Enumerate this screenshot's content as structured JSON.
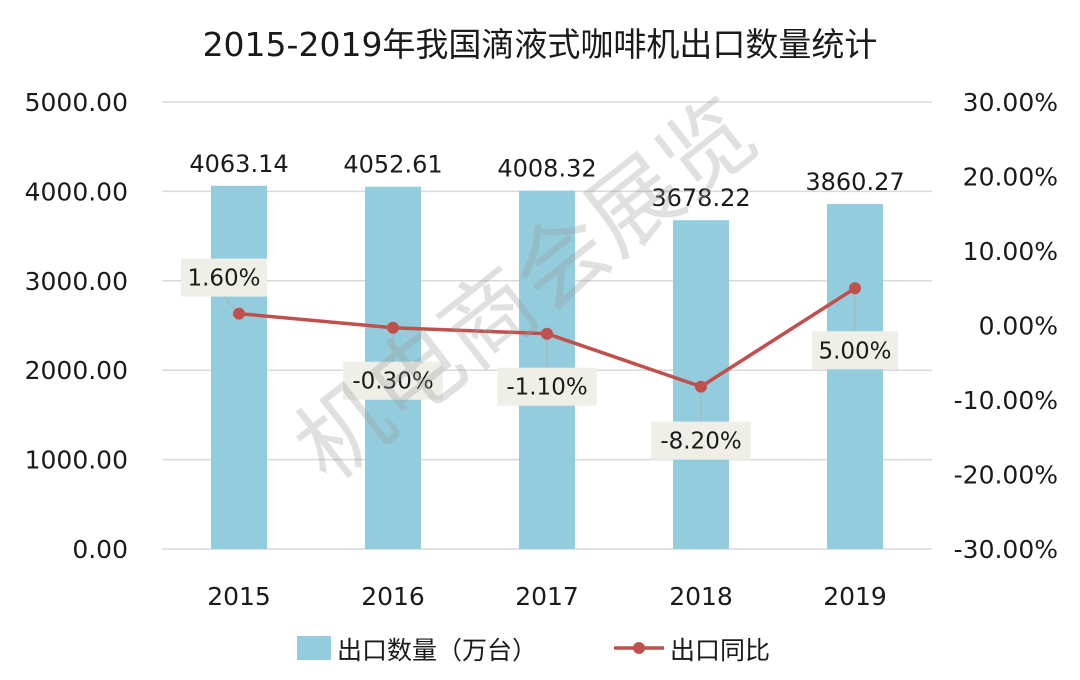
{
  "chart_data": {
    "type": "bar+line",
    "title": "2015-2019年我国滴液式咖啡机出口数量统计",
    "categories": [
      "2015",
      "2016",
      "2017",
      "2018",
      "2019"
    ],
    "series": [
      {
        "name": "出口数量（万台）",
        "type": "bar",
        "axis": "left",
        "values": [
          4063.14,
          4052.61,
          4008.32,
          3678.22,
          3860.27
        ],
        "labels": [
          "4063.14",
          "4052.61",
          "4008.32",
          "3678.22",
          "3860.27"
        ]
      },
      {
        "name": "出口同比",
        "type": "line",
        "axis": "right",
        "values": [
          1.6,
          -0.3,
          -1.1,
          -8.2,
          5.0
        ],
        "labels": [
          "1.60%",
          "-0.30%",
          "-1.10%",
          "-8.20%",
          "5.00%"
        ]
      }
    ],
    "y_left": {
      "range": [
        0,
        5000
      ],
      "ticks": [
        "0.00",
        "1000.00",
        "2000.00",
        "3000.00",
        "4000.00",
        "5000.00"
      ]
    },
    "y_right": {
      "range": [
        -30,
        30
      ],
      "ticks": [
        "-30.00%",
        "-20.00%",
        "-10.00%",
        "0.00%",
        "10.00%",
        "20.00%",
        "30.00%"
      ]
    },
    "grid": true,
    "legend_position": "bottom",
    "colors": {
      "bar": "#93cddd",
      "line": "#c0504d",
      "grid": "#d9d9d9",
      "label_box": "#efefe8"
    }
  },
  "watermark": "机电商会展览"
}
